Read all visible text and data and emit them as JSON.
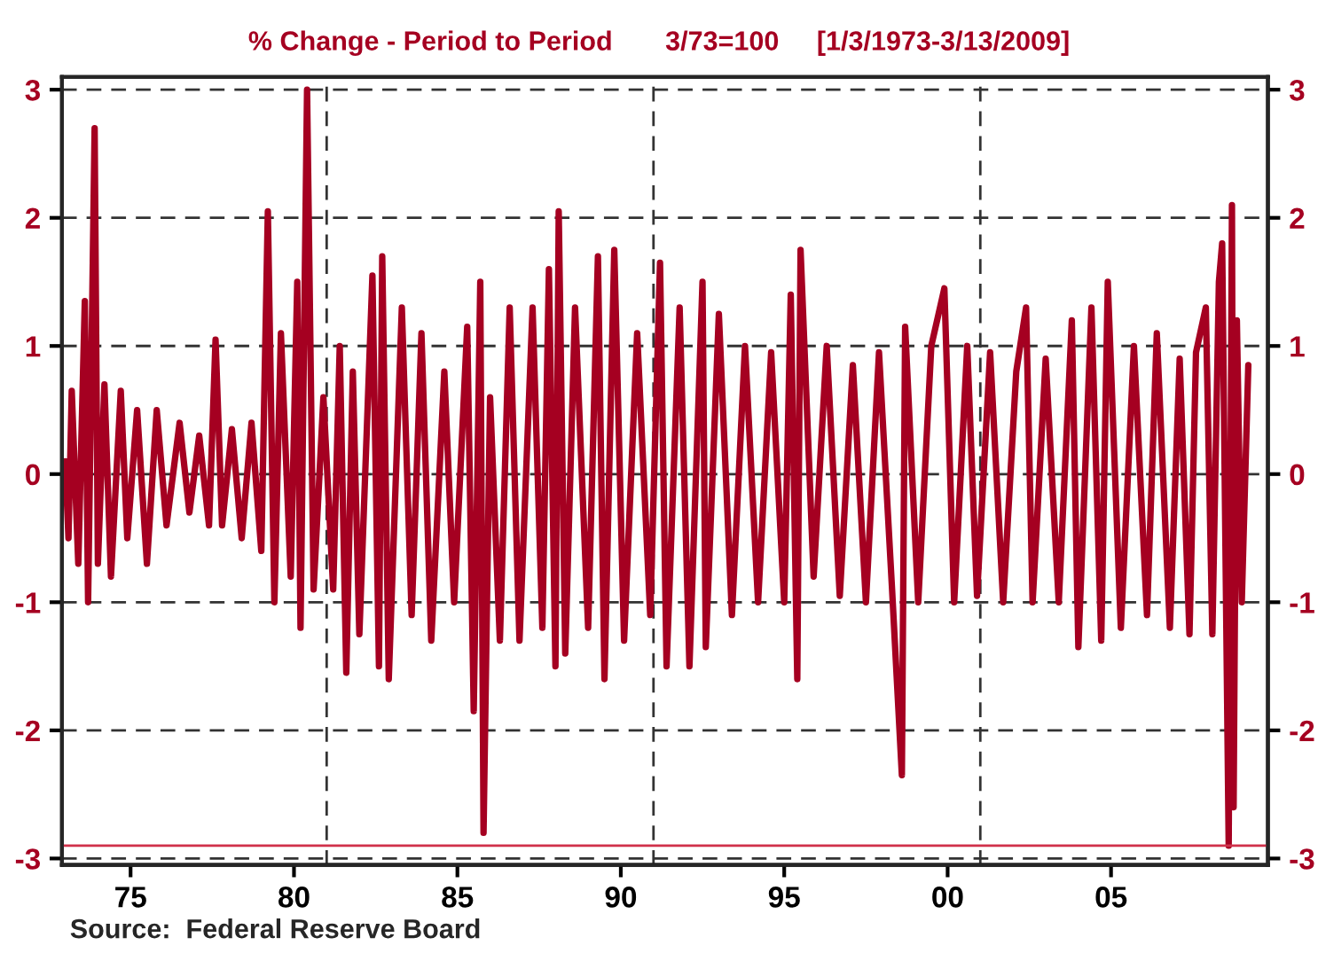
{
  "chart_data": {
    "type": "line",
    "title": "% Change - Period to Period       3/73=100     [1/3/1973-3/13/2009]",
    "x": [
      1973.0,
      1973.1,
      1973.2,
      1973.4,
      1973.6,
      1973.7,
      1973.9,
      1974.0,
      1974.2,
      1974.4,
      1974.7,
      1974.9,
      1975.2,
      1975.5,
      1975.8,
      1976.1,
      1976.5,
      1976.8,
      1977.1,
      1977.4,
      1977.6,
      1977.8,
      1978.1,
      1978.4,
      1978.7,
      1979.0,
      1979.2,
      1979.4,
      1979.6,
      1979.9,
      1980.1,
      1980.2,
      1980.4,
      1980.6,
      1980.9,
      1981.2,
      1981.4,
      1981.6,
      1981.8,
      1982.0,
      1982.4,
      1982.6,
      1982.7,
      1982.9,
      1983.3,
      1983.6,
      1983.9,
      1984.2,
      1984.6,
      1984.9,
      1985.3,
      1985.5,
      1985.7,
      1985.8,
      1986.0,
      1986.3,
      1986.6,
      1986.9,
      1987.3,
      1987.6,
      1987.8,
      1988.0,
      1988.1,
      1988.3,
      1988.6,
      1989.0,
      1989.3,
      1989.5,
      1989.8,
      1990.1,
      1990.5,
      1990.9,
      1991.2,
      1991.4,
      1991.8,
      1992.1,
      1992.5,
      1992.6,
      1993.0,
      1993.4,
      1993.8,
      1994.2,
      1994.6,
      1995.0,
      1995.2,
      1995.4,
      1995.5,
      1995.9,
      1996.3,
      1996.7,
      1997.1,
      1997.5,
      1997.9,
      1998.3,
      1998.6,
      1998.7,
      1999.1,
      1999.5,
      1999.9,
      2000.2,
      2000.6,
      2000.9,
      2001.3,
      2001.7,
      2002.1,
      2002.4,
      2002.6,
      2003.0,
      2003.4,
      2003.8,
      2004.0,
      2004.4,
      2004.7,
      2004.9,
      2005.3,
      2005.7,
      2006.1,
      2006.4,
      2006.8,
      2007.1,
      2007.4,
      2007.6,
      2007.9,
      2008.1,
      2008.3,
      2008.4,
      2008.6,
      2008.7,
      2008.75,
      2008.85,
      2009.0,
      2009.2
    ],
    "series": [
      {
        "color": "#a50021",
        "values": [
          0.1,
          -0.5,
          0.65,
          -0.7,
          1.35,
          -1.0,
          2.7,
          -0.7,
          0.7,
          -0.8,
          0.65,
          -0.5,
          0.5,
          -0.7,
          0.5,
          -0.4,
          0.4,
          -0.3,
          0.3,
          -0.4,
          1.05,
          -0.4,
          0.35,
          -0.5,
          0.4,
          -0.6,
          2.05,
          -1.0,
          1.1,
          -0.8,
          1.5,
          -1.2,
          3.0,
          -0.9,
          0.6,
          -0.9,
          1.0,
          -1.55,
          0.8,
          -1.25,
          1.55,
          -1.5,
          1.7,
          -1.6,
          1.3,
          -1.1,
          1.1,
          -1.3,
          0.8,
          -1.0,
          1.15,
          -1.85,
          1.5,
          -2.8,
          0.6,
          -1.3,
          1.3,
          -1.3,
          1.3,
          -1.2,
          1.6,
          -1.5,
          2.05,
          -1.4,
          1.3,
          -1.2,
          1.7,
          -1.6,
          1.75,
          -1.3,
          1.1,
          -1.1,
          1.65,
          -1.5,
          1.3,
          -1.5,
          1.5,
          -1.35,
          1.25,
          -1.1,
          1.0,
          -1.0,
          0.95,
          -1.0,
          1.4,
          -1.6,
          1.75,
          -0.8,
          1.0,
          -0.95,
          0.85,
          -1.0,
          0.95,
          -0.9,
          -2.35,
          1.15,
          -1.0,
          1.0,
          1.45,
          -1.0,
          1.0,
          -0.95,
          0.95,
          -1.0,
          0.8,
          1.3,
          -1.0,
          0.9,
          -1.0,
          1.2,
          -1.35,
          1.3,
          -1.3,
          1.5,
          -1.2,
          1.0,
          -1.1,
          1.1,
          -1.2,
          0.9,
          -1.25,
          0.95,
          1.3,
          -1.25,
          1.5,
          1.8,
          -2.9,
          2.1,
          -2.6,
          1.2,
          -1.0,
          0.85
        ]
      }
    ],
    "xlim": [
      1972.9,
      2009.8
    ],
    "xticks": [
      {
        "value": 1975,
        "label": "75"
      },
      {
        "value": 1980,
        "label": "80"
      },
      {
        "value": 1985,
        "label": "85"
      },
      {
        "value": 1990,
        "label": "90"
      },
      {
        "value": 1995,
        "label": "95"
      },
      {
        "value": 2000,
        "label": "00"
      },
      {
        "value": 2005,
        "label": "05"
      }
    ],
    "ylim": [
      -3.05,
      3.1
    ],
    "yticks": [
      -3,
      -2,
      -1,
      0,
      1,
      2,
      3
    ],
    "y2lim": [
      -3.05,
      3.1
    ],
    "y2ticks": [
      -3,
      -2,
      -1,
      0,
      1,
      2,
      3
    ],
    "grid": "y",
    "line_style": "solid",
    "ref_lines": [
      {
        "axis": "x",
        "value": 1981,
        "color": "#333333",
        "line_style": "dashed"
      },
      {
        "axis": "x",
        "value": 1991,
        "color": "#333333",
        "line_style": "dashed"
      },
      {
        "axis": "x",
        "value": 2001,
        "color": "#333333",
        "line_style": "dashed"
      },
      {
        "axis": "y",
        "value": -2.9,
        "color": "#d0304a",
        "line_style": "solid"
      }
    ],
    "annotations": [
      "Source:  Federal Reserve Board"
    ]
  }
}
